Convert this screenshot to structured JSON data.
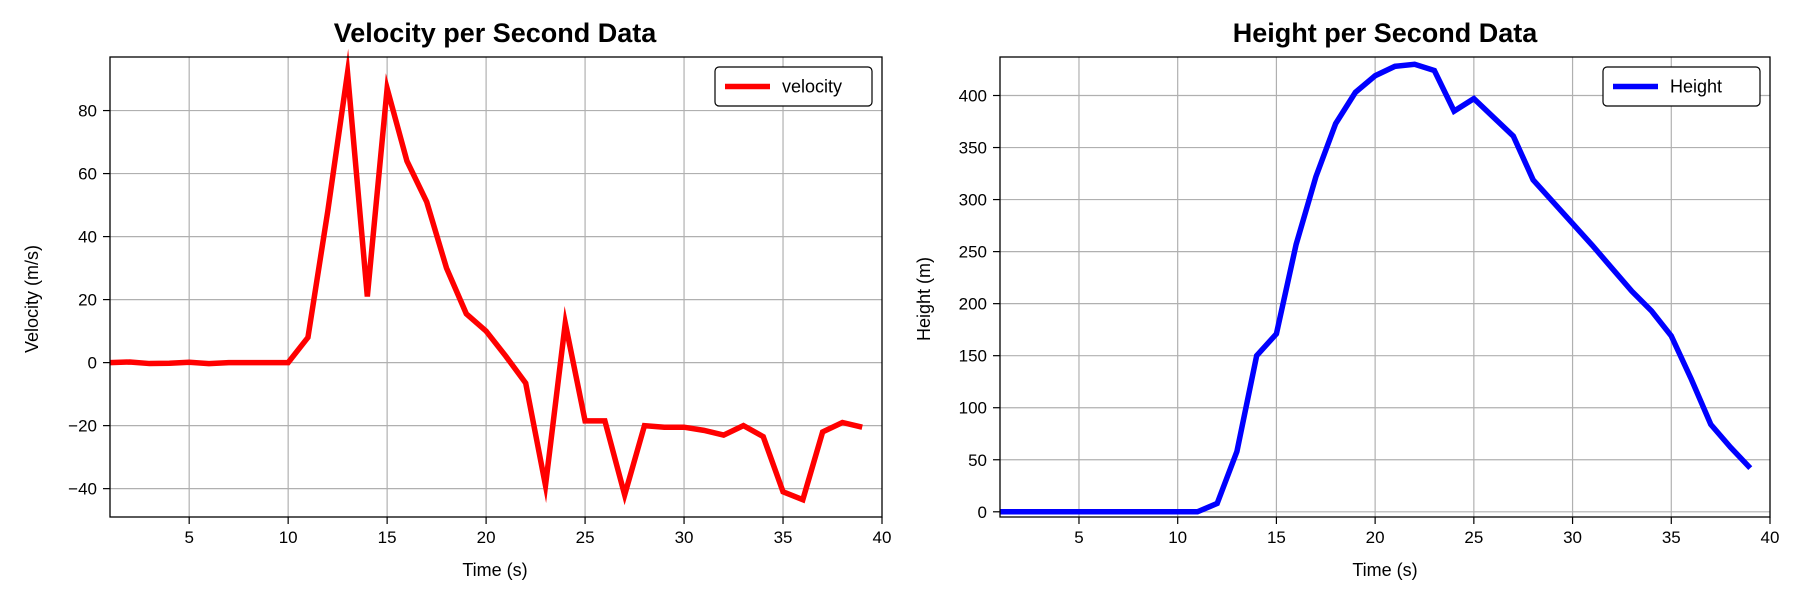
{
  "chart_data": [
    {
      "type": "line",
      "title": "Velocity per Second Data",
      "xlabel": "Time (s)",
      "ylabel": "Velocity (m/s)",
      "xlim": [
        1,
        40
      ],
      "ylim": [
        -49,
        97
      ],
      "xticks": [
        5,
        10,
        15,
        20,
        25,
        30,
        35,
        40
      ],
      "yticks": [
        -40,
        -20,
        0,
        20,
        40,
        60,
        80
      ],
      "grid": true,
      "legend_position": "top-right",
      "series": [
        {
          "name": "velocity",
          "color": "#ff0000",
          "x": [
            1,
            2,
            3,
            4,
            5,
            6,
            7,
            8,
            9,
            10,
            11,
            12,
            13,
            14,
            15,
            16,
            17,
            18,
            19,
            20,
            21,
            22,
            23,
            24,
            25,
            26,
            27,
            28,
            29,
            30,
            31,
            32,
            33,
            34,
            35,
            36,
            37,
            38,
            39
          ],
          "y": [
            0,
            0.2,
            -0.3,
            -0.2,
            0.1,
            -0.3,
            0,
            0,
            0,
            0,
            8,
            48,
            92,
            21,
            87,
            64,
            51,
            30,
            15.5,
            10,
            2,
            -6.5,
            -39,
            12.5,
            -18.5,
            -18.5,
            -42,
            -20,
            -20.5,
            -20.5,
            -21.5,
            -23,
            -20,
            -23.5,
            -41,
            -43.5,
            -22,
            -19,
            -20.5
          ]
        }
      ]
    },
    {
      "type": "line",
      "title": "Height per Second Data",
      "xlabel": "Time (s)",
      "ylabel": "Height (m)",
      "xlim": [
        1,
        40
      ],
      "ylim": [
        -5,
        437
      ],
      "xticks": [
        5,
        10,
        15,
        20,
        25,
        30,
        35,
        40
      ],
      "yticks": [
        0,
        50,
        100,
        150,
        200,
        250,
        300,
        350,
        400
      ],
      "grid": true,
      "legend_position": "top-right",
      "series": [
        {
          "name": "Height",
          "color": "#0000ff",
          "x": [
            1,
            2,
            3,
            4,
            5,
            6,
            7,
            8,
            9,
            10,
            11,
            12,
            13,
            14,
            15,
            16,
            17,
            18,
            19,
            20,
            21,
            22,
            23,
            24,
            25,
            26,
            27,
            28,
            29,
            30,
            31,
            32,
            33,
            34,
            35,
            36,
            37,
            38,
            39
          ],
          "y": [
            0,
            0,
            0,
            0,
            0,
            0,
            0,
            0,
            0,
            0,
            0,
            8,
            58,
            150,
            171,
            257,
            322,
            373,
            403,
            419,
            428,
            430,
            424,
            385,
            397,
            379,
            361,
            319,
            298,
            277,
            256,
            234,
            212,
            193,
            169,
            128,
            84,
            62,
            42
          ]
        }
      ]
    }
  ]
}
